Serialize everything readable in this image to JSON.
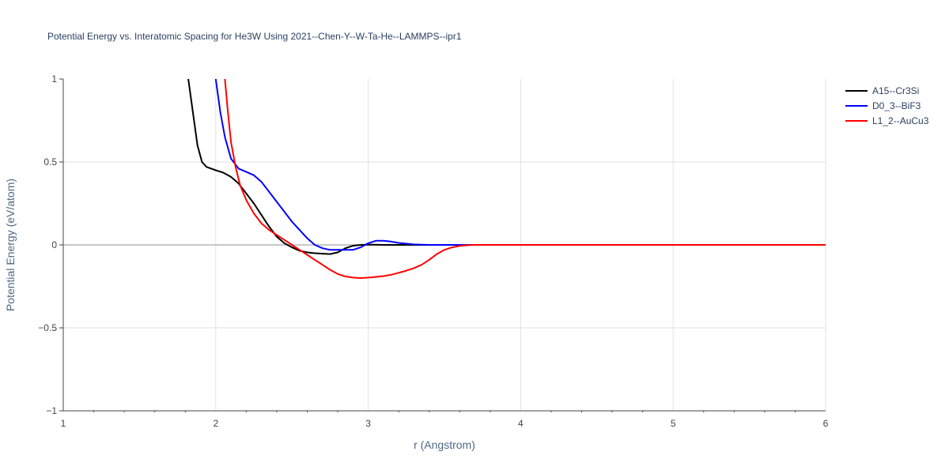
{
  "chart_data": {
    "type": "line",
    "title": "Potential Energy vs. Interatomic Spacing for He3W Using 2021--Chen-Y--W-Ta-He--LAMMPS--ipr1",
    "xlabel": "r (Angstrom)",
    "ylabel": "Potential Energy (eV/atom)",
    "xlim": [
      1,
      6
    ],
    "ylim": [
      -1,
      1
    ],
    "x_ticks": [
      1,
      2,
      3,
      4,
      5,
      6
    ],
    "x_tick_labels": [
      "1",
      "2",
      "3",
      "4",
      "5",
      "6"
    ],
    "y_ticks": [
      -1,
      -0.5,
      0,
      0.5,
      1
    ],
    "y_tick_labels": [
      "−1",
      "−0.5",
      "0",
      "0.5",
      "1"
    ],
    "grid": true,
    "legend_position": "top-right",
    "series": [
      {
        "name": "A15--Cr3Si",
        "color": "#000000",
        "x": [
          1.82,
          1.85,
          1.88,
          1.91,
          1.94,
          1.97,
          2.0,
          2.05,
          2.1,
          2.15,
          2.2,
          2.25,
          2.3,
          2.35,
          2.4,
          2.45,
          2.5,
          2.55,
          2.6,
          2.65,
          2.7,
          2.75,
          2.8,
          2.85,
          2.9,
          2.95,
          3.0,
          3.05,
          3.1,
          3.2,
          3.3,
          3.5,
          3.7,
          4.0,
          5.0,
          6.0
        ],
        "y": [
          1.0,
          0.8,
          0.6,
          0.5,
          0.47,
          0.46,
          0.45,
          0.435,
          0.41,
          0.37,
          0.31,
          0.25,
          0.18,
          0.11,
          0.05,
          0.01,
          -0.015,
          -0.035,
          -0.045,
          -0.05,
          -0.053,
          -0.055,
          -0.045,
          -0.02,
          -0.005,
          0.0,
          0.002,
          0.001,
          0.0,
          0.0,
          0.0,
          0.0,
          0.0,
          0.0,
          0.0,
          0.0
        ]
      },
      {
        "name": "D0_3--BiF3",
        "color": "#0000ff",
        "x": [
          2.0,
          2.03,
          2.06,
          2.1,
          2.15,
          2.2,
          2.25,
          2.3,
          2.35,
          2.4,
          2.45,
          2.5,
          2.55,
          2.6,
          2.65,
          2.7,
          2.75,
          2.8,
          2.85,
          2.9,
          2.95,
          3.0,
          3.05,
          3.1,
          3.15,
          3.2,
          3.3,
          3.4,
          3.5,
          3.7,
          4.0,
          5.0,
          6.0
        ],
        "y": [
          1.0,
          0.8,
          0.65,
          0.52,
          0.46,
          0.44,
          0.42,
          0.38,
          0.32,
          0.26,
          0.2,
          0.14,
          0.09,
          0.04,
          0.0,
          -0.02,
          -0.03,
          -0.03,
          -0.03,
          -0.03,
          -0.015,
          0.01,
          0.025,
          0.025,
          0.02,
          0.012,
          0.003,
          0.0,
          0.0,
          0.0,
          0.0,
          0.0,
          0.0
        ]
      },
      {
        "name": "L1_2--AuCu3",
        "color": "#ff0000",
        "x": [
          2.06,
          2.08,
          2.1,
          2.13,
          2.16,
          2.2,
          2.25,
          2.3,
          2.35,
          2.4,
          2.45,
          2.5,
          2.55,
          2.6,
          2.65,
          2.7,
          2.75,
          2.8,
          2.85,
          2.9,
          2.95,
          3.0,
          3.05,
          3.1,
          3.15,
          3.2,
          3.25,
          3.3,
          3.35,
          3.4,
          3.45,
          3.5,
          3.55,
          3.6,
          3.65,
          3.7,
          4.0,
          5.0,
          6.0
        ],
        "y": [
          1.0,
          0.8,
          0.62,
          0.47,
          0.36,
          0.27,
          0.19,
          0.13,
          0.09,
          0.06,
          0.03,
          0.0,
          -0.03,
          -0.06,
          -0.09,
          -0.12,
          -0.15,
          -0.175,
          -0.19,
          -0.197,
          -0.2,
          -0.197,
          -0.193,
          -0.188,
          -0.18,
          -0.168,
          -0.155,
          -0.14,
          -0.12,
          -0.09,
          -0.055,
          -0.03,
          -0.015,
          -0.006,
          -0.002,
          0.0,
          0.0,
          0.0,
          0.0
        ]
      }
    ]
  }
}
